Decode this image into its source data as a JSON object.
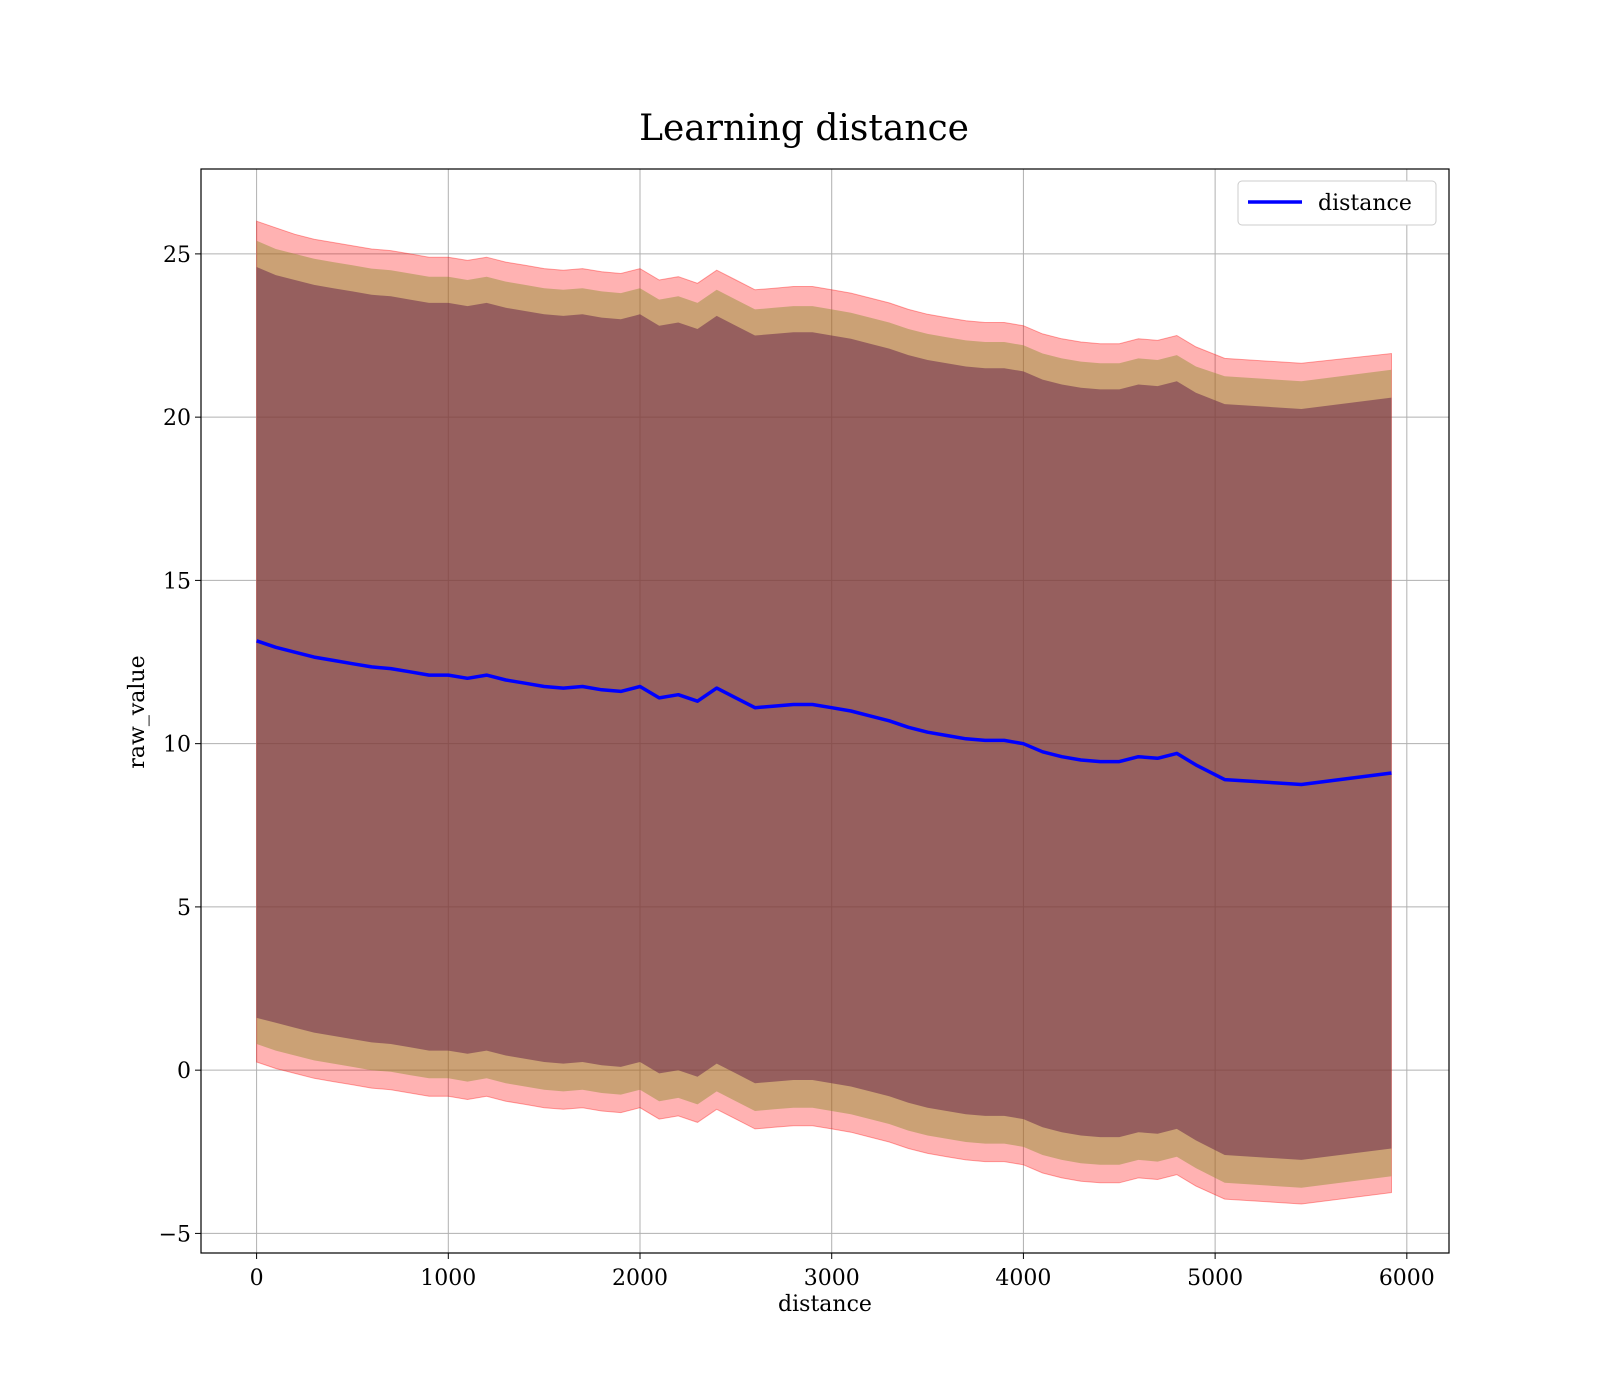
{
  "chart_data": {
    "type": "line",
    "title": "Learning distance",
    "xlabel": "distance",
    "ylabel": "raw_value",
    "xlim": [
      -290,
      6220
    ],
    "ylim": [
      -5.6,
      27.6
    ],
    "xticks": [
      0,
      1000,
      2000,
      3000,
      4000,
      5000,
      6000
    ],
    "yticks": [
      -5,
      0,
      5,
      10,
      15,
      20,
      25
    ],
    "ytick_labels": [
      "−5",
      "0",
      "5",
      "10",
      "15",
      "20",
      "25"
    ],
    "grid": true,
    "legend_position": "top-right",
    "colors": {
      "line": "#0000ff",
      "outer_band": "#ff0000",
      "mid_band": "#8b8b2a",
      "inner_band": "#6b2a4a"
    },
    "series": [
      {
        "name": "distance",
        "x": [
          0,
          100,
          200,
          300,
          400,
          500,
          600,
          700,
          800,
          900,
          1000,
          1100,
          1200,
          1300,
          1400,
          1500,
          1600,
          1700,
          1800,
          1900,
          2000,
          2100,
          2200,
          2300,
          2400,
          2500,
          2600,
          2700,
          2800,
          2900,
          3000,
          3100,
          3200,
          3300,
          3400,
          3500,
          3600,
          3700,
          3800,
          3900,
          4000,
          4100,
          4200,
          4300,
          4400,
          4500,
          4600,
          4700,
          4800,
          4900,
          5050,
          5450,
          5920
        ],
        "y": [
          13.15,
          12.95,
          12.8,
          12.65,
          12.55,
          12.45,
          12.35,
          12.3,
          12.2,
          12.1,
          12.1,
          12.0,
          12.1,
          11.95,
          11.85,
          11.75,
          11.7,
          11.75,
          11.65,
          11.6,
          11.75,
          11.4,
          11.5,
          11.3,
          11.7,
          11.4,
          11.1,
          11.15,
          11.2,
          11.2,
          11.1,
          11.0,
          10.85,
          10.7,
          10.5,
          10.35,
          10.25,
          10.15,
          10.1,
          10.1,
          10.0,
          9.75,
          9.6,
          9.5,
          9.45,
          9.45,
          9.6,
          9.55,
          9.7,
          9.35,
          8.9,
          8.75,
          9.1
        ]
      }
    ],
    "bands": {
      "outer_upper": [
        26.0,
        25.8,
        25.6,
        25.45,
        25.35,
        25.25,
        25.15,
        25.1,
        25.0,
        24.9,
        24.9,
        24.8,
        24.9,
        24.75,
        24.65,
        24.55,
        24.5,
        24.55,
        24.45,
        24.4,
        24.55,
        24.2,
        24.3,
        24.1,
        24.5,
        24.2,
        23.9,
        23.95,
        24.0,
        24.0,
        23.9,
        23.8,
        23.65,
        23.5,
        23.3,
        23.15,
        23.05,
        22.95,
        22.9,
        22.9,
        22.8,
        22.55,
        22.4,
        22.3,
        22.25,
        22.25,
        22.4,
        22.35,
        22.5,
        22.15,
        21.8,
        21.65,
        21.95
      ],
      "mid_upper": [
        25.4,
        25.15,
        25.0,
        24.85,
        24.75,
        24.65,
        24.55,
        24.5,
        24.4,
        24.3,
        24.3,
        24.2,
        24.3,
        24.15,
        24.05,
        23.95,
        23.9,
        23.95,
        23.85,
        23.8,
        23.95,
        23.6,
        23.7,
        23.5,
        23.9,
        23.6,
        23.3,
        23.35,
        23.4,
        23.4,
        23.3,
        23.2,
        23.05,
        22.9,
        22.7,
        22.55,
        22.45,
        22.35,
        22.3,
        22.3,
        22.2,
        21.95,
        21.8,
        21.7,
        21.65,
        21.65,
        21.8,
        21.75,
        21.9,
        21.55,
        21.25,
        21.1,
        21.45
      ],
      "inner_upper": [
        24.6,
        24.35,
        24.2,
        24.05,
        23.95,
        23.85,
        23.75,
        23.7,
        23.6,
        23.5,
        23.5,
        23.4,
        23.5,
        23.35,
        23.25,
        23.15,
        23.1,
        23.15,
        23.05,
        23.0,
        23.15,
        22.8,
        22.9,
        22.7,
        23.1,
        22.8,
        22.5,
        22.55,
        22.6,
        22.6,
        22.5,
        22.4,
        22.25,
        22.1,
        21.9,
        21.75,
        21.65,
        21.55,
        21.5,
        21.5,
        21.4,
        21.15,
        21.0,
        20.9,
        20.85,
        20.85,
        21.0,
        20.95,
        21.1,
        20.75,
        20.4,
        20.25,
        20.6
      ],
      "inner_lower": [
        1.6,
        1.45,
        1.3,
        1.15,
        1.05,
        0.95,
        0.85,
        0.8,
        0.7,
        0.6,
        0.6,
        0.5,
        0.6,
        0.45,
        0.35,
        0.25,
        0.2,
        0.25,
        0.15,
        0.1,
        0.25,
        -0.1,
        0.0,
        -0.2,
        0.2,
        -0.1,
        -0.4,
        -0.35,
        -0.3,
        -0.3,
        -0.4,
        -0.5,
        -0.65,
        -0.8,
        -1.0,
        -1.15,
        -1.25,
        -1.35,
        -1.4,
        -1.4,
        -1.5,
        -1.75,
        -1.9,
        -2.0,
        -2.05,
        -2.05,
        -1.9,
        -1.95,
        -1.8,
        -2.15,
        -2.6,
        -2.75,
        -2.4
      ],
      "mid_lower": [
        0.8,
        0.6,
        0.45,
        0.3,
        0.2,
        0.1,
        0.0,
        -0.05,
        -0.15,
        -0.25,
        -0.25,
        -0.35,
        -0.25,
        -0.4,
        -0.5,
        -0.6,
        -0.65,
        -0.6,
        -0.7,
        -0.75,
        -0.6,
        -0.95,
        -0.85,
        -1.05,
        -0.65,
        -0.95,
        -1.25,
        -1.2,
        -1.15,
        -1.15,
        -1.25,
        -1.35,
        -1.5,
        -1.65,
        -1.85,
        -2.0,
        -2.1,
        -2.2,
        -2.25,
        -2.25,
        -2.35,
        -2.6,
        -2.75,
        -2.85,
        -2.9,
        -2.9,
        -2.75,
        -2.8,
        -2.65,
        -3.0,
        -3.45,
        -3.6,
        -3.25
      ],
      "outer_lower": [
        0.25,
        0.05,
        -0.1,
        -0.25,
        -0.35,
        -0.45,
        -0.55,
        -0.6,
        -0.7,
        -0.8,
        -0.8,
        -0.9,
        -0.8,
        -0.95,
        -1.05,
        -1.15,
        -1.2,
        -1.15,
        -1.25,
        -1.3,
        -1.15,
        -1.5,
        -1.4,
        -1.6,
        -1.2,
        -1.5,
        -1.8,
        -1.75,
        -1.7,
        -1.7,
        -1.8,
        -1.9,
        -2.05,
        -2.2,
        -2.4,
        -2.55,
        -2.65,
        -2.75,
        -2.8,
        -2.8,
        -2.9,
        -3.15,
        -3.3,
        -3.4,
        -3.45,
        -3.45,
        -3.3,
        -3.35,
        -3.2,
        -3.55,
        -3.95,
        -4.1,
        -3.75
      ]
    }
  }
}
